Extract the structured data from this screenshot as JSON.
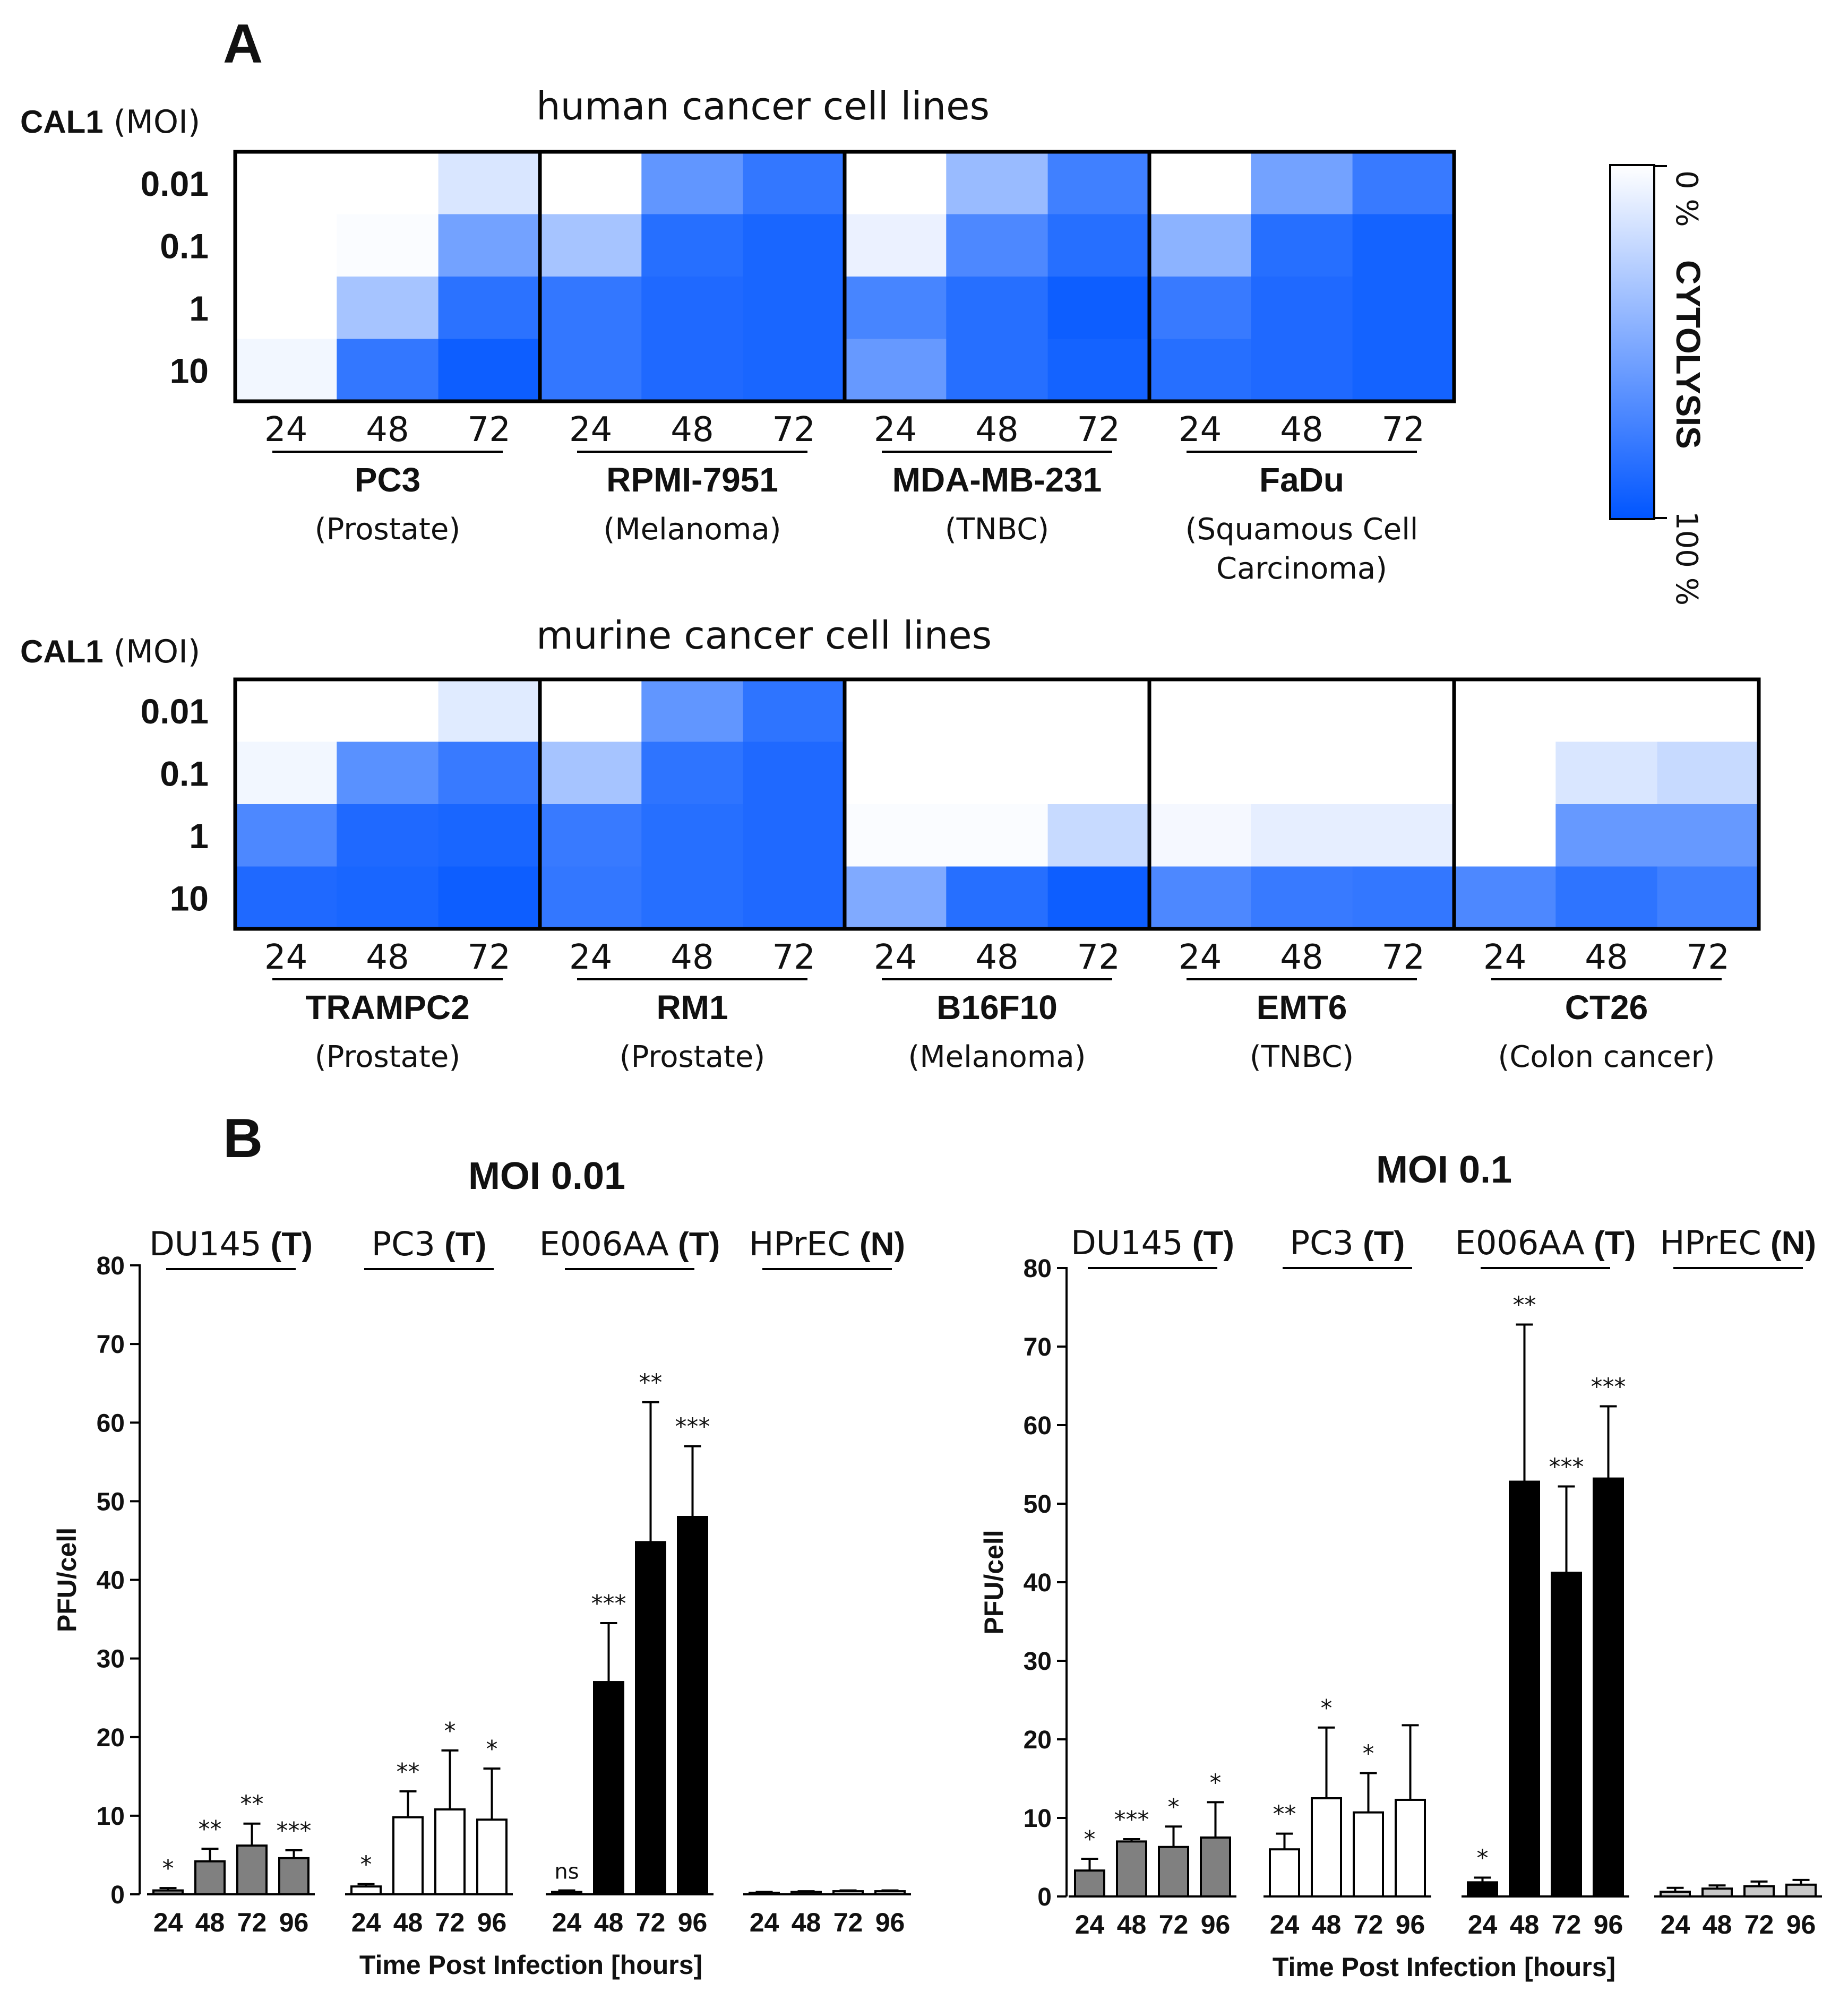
{
  "panel_a": {
    "label": "A",
    "colorbar": {
      "top": "0 %",
      "middle": "CYTOLYSIS",
      "bottom": "100 %",
      "color_low": "#ffffff",
      "color_high": "#0055ff"
    }
  },
  "panel_b": {
    "label": "B"
  },
  "chart_data": [
    {
      "type": "heatmap",
      "title": "human cancer cell lines",
      "y_label_bold": "CAL1",
      "y_label_rest": "(MOI)",
      "rows": [
        "0.01",
        "0.1",
        "1",
        "10"
      ],
      "columns": [
        "24",
        "48",
        "72"
      ],
      "value_unit": "% cytolysis",
      "groups": [
        {
          "name": "PC3",
          "subtitle": [
            "(Prostate)"
          ],
          "values": [
            [
              0,
              0,
              15
            ],
            [
              0,
              2,
              55
            ],
            [
              0,
              35,
              83
            ],
            [
              5,
              80,
              95
            ]
          ]
        },
        {
          "name": "RPMI-7951",
          "subtitle": [
            "(Melanoma)"
          ],
          "values": [
            [
              0,
              62,
              80
            ],
            [
              35,
              85,
              90
            ],
            [
              80,
              88,
              90
            ],
            [
              80,
              88,
              90
            ]
          ]
        },
        {
          "name": "MDA-MB-231",
          "subtitle": [
            "(TNBC)"
          ],
          "values": [
            [
              0,
              40,
              75
            ],
            [
              8,
              70,
              85
            ],
            [
              72,
              85,
              95
            ],
            [
              60,
              85,
              92
            ]
          ]
        },
        {
          "name": "FaDu",
          "subtitle": [
            "(Squamous Cell",
            "Carcinoma)"
          ],
          "values": [
            [
              0,
              55,
              78
            ],
            [
              45,
              85,
              92
            ],
            [
              78,
              88,
              92
            ],
            [
              85,
              88,
              92
            ]
          ]
        }
      ]
    },
    {
      "type": "heatmap",
      "title": "murine cancer cell lines",
      "y_label_bold": "CAL1",
      "y_label_rest": "(MOI)",
      "rows": [
        "0.01",
        "0.1",
        "1",
        "10"
      ],
      "columns": [
        "24",
        "48",
        "72"
      ],
      "value_unit": "% cytolysis",
      "groups": [
        {
          "name": "TRAMPC2",
          "subtitle": [
            "(Prostate)"
          ],
          "values": [
            [
              0,
              0,
              12
            ],
            [
              5,
              65,
              78
            ],
            [
              70,
              88,
              90
            ],
            [
              88,
              90,
              95
            ]
          ]
        },
        {
          "name": "RM1",
          "subtitle": [
            "(Prostate)"
          ],
          "values": [
            [
              0,
              62,
              82
            ],
            [
              35,
              82,
              88
            ],
            [
              78,
              85,
              88
            ],
            [
              80,
              85,
              88
            ]
          ]
        },
        {
          "name": "B16F10",
          "subtitle": [
            "(Melanoma)"
          ],
          "values": [
            [
              0,
              0,
              0
            ],
            [
              0,
              0,
              0
            ],
            [
              2,
              2,
              22
            ],
            [
              50,
              85,
              95
            ]
          ]
        },
        {
          "name": "EMT6",
          "subtitle": [
            "(TNBC)"
          ],
          "values": [
            [
              0,
              0,
              0
            ],
            [
              0,
              0,
              0
            ],
            [
              4,
              10,
              10
            ],
            [
              70,
              78,
              80
            ]
          ]
        },
        {
          "name": "CT26",
          "subtitle": [
            "(Colon cancer)"
          ],
          "values": [
            [
              0,
              0,
              0
            ],
            [
              0,
              15,
              22
            ],
            [
              0,
              60,
              60
            ],
            [
              70,
              82,
              75
            ]
          ]
        }
      ]
    },
    {
      "type": "bar",
      "title": "MOI 0.01",
      "ylabel": "PFU/cell",
      "xlabel": "Time Post Infection [hours]",
      "ylim": [
        0,
        80
      ],
      "yticks": [
        0,
        10,
        20,
        30,
        40,
        50,
        60,
        70,
        80
      ],
      "categories": [
        "24",
        "48",
        "72",
        "96"
      ],
      "groups": [
        {
          "name": "DU145",
          "tag": "(T)",
          "fill": "#808080",
          "values": [
            0.5,
            4.2,
            6.2,
            4.6
          ],
          "errors": [
            0.3,
            1.6,
            2.8,
            1.0
          ],
          "sig": [
            "*",
            "**",
            "**",
            "***"
          ]
        },
        {
          "name": "PC3",
          "tag": "(T)",
          "fill": "#ffffff",
          "values": [
            1.0,
            9.8,
            10.8,
            9.5
          ],
          "errors": [
            0.3,
            3.3,
            7.5,
            6.5
          ],
          "sig": [
            "*",
            "**",
            "*",
            "*"
          ]
        },
        {
          "name": "E006AA",
          "tag": "(T)",
          "fill": "#000000",
          "values": [
            0.3,
            27.0,
            44.8,
            48.0
          ],
          "errors": [
            0.2,
            7.5,
            17.8,
            9.0
          ],
          "sig": [
            "ns",
            "***",
            "**",
            "***"
          ]
        },
        {
          "name": "HPrEC",
          "tag": "(N)",
          "fill": "#c8c8c8",
          "values": [
            0.2,
            0.3,
            0.4,
            0.4
          ],
          "errors": [
            0.1,
            0.1,
            0.1,
            0.1
          ],
          "sig": [
            "",
            "",
            "",
            ""
          ]
        }
      ]
    },
    {
      "type": "bar",
      "title": "MOI 0.1",
      "ylabel": "PFU/cell",
      "xlabel": "Time Post Infection [hours]",
      "ylim": [
        0,
        80
      ],
      "yticks": [
        0,
        10,
        20,
        30,
        40,
        50,
        60,
        70,
        80
      ],
      "categories": [
        "24",
        "48",
        "72",
        "96"
      ],
      "groups": [
        {
          "name": "DU145",
          "tag": "(T)",
          "fill": "#808080",
          "values": [
            3.3,
            7.0,
            6.3,
            7.5
          ],
          "errors": [
            1.5,
            0.3,
            2.6,
            4.5
          ],
          "sig": [
            "*",
            "***",
            "*",
            "*"
          ]
        },
        {
          "name": "PC3",
          "tag": "(T)",
          "fill": "#ffffff",
          "values": [
            6.0,
            12.5,
            10.7,
            12.3
          ],
          "errors": [
            2.0,
            9.0,
            5.0,
            9.5
          ],
          "sig": [
            "**",
            "*",
            "*",
            ""
          ]
        },
        {
          "name": "E006AA",
          "tag": "(T)",
          "fill": "#000000",
          "values": [
            1.8,
            52.8,
            41.2,
            53.2
          ],
          "errors": [
            0.6,
            20.0,
            11.0,
            9.2
          ],
          "sig": [
            "*",
            "**",
            "***",
            "***"
          ]
        },
        {
          "name": "HPrEC",
          "tag": "(N)",
          "fill": "#c8c8c8",
          "values": [
            0.6,
            1.0,
            1.3,
            1.5
          ],
          "errors": [
            0.5,
            0.4,
            0.6,
            0.6
          ],
          "sig": [
            "",
            "",
            "",
            ""
          ]
        }
      ]
    }
  ]
}
